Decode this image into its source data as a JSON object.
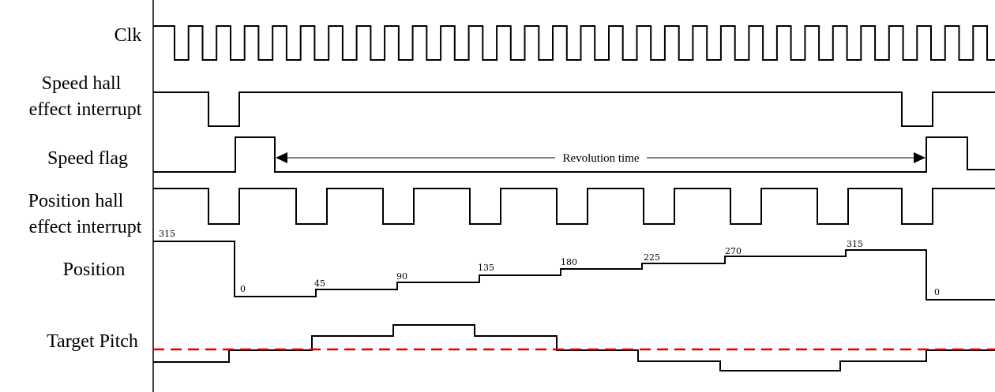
{
  "signals": {
    "clk": "Clk",
    "speed_hall_line1": "Speed hall",
    "speed_hall_line2": "effect interrupt",
    "speed_flag": "Speed flag",
    "position_hall_line1": "Position hall",
    "position_hall_line2": "effect interrupt",
    "position": "Position",
    "target_pitch": "Target Pitch"
  },
  "annotation": {
    "revolution_time": "Revolution time"
  },
  "position_values": [
    "315",
    "0",
    "45",
    "90",
    "135",
    "180",
    "225",
    "270",
    "315",
    "0"
  ],
  "colors": {
    "trace": "#000000",
    "target_line": "#e00000"
  }
}
